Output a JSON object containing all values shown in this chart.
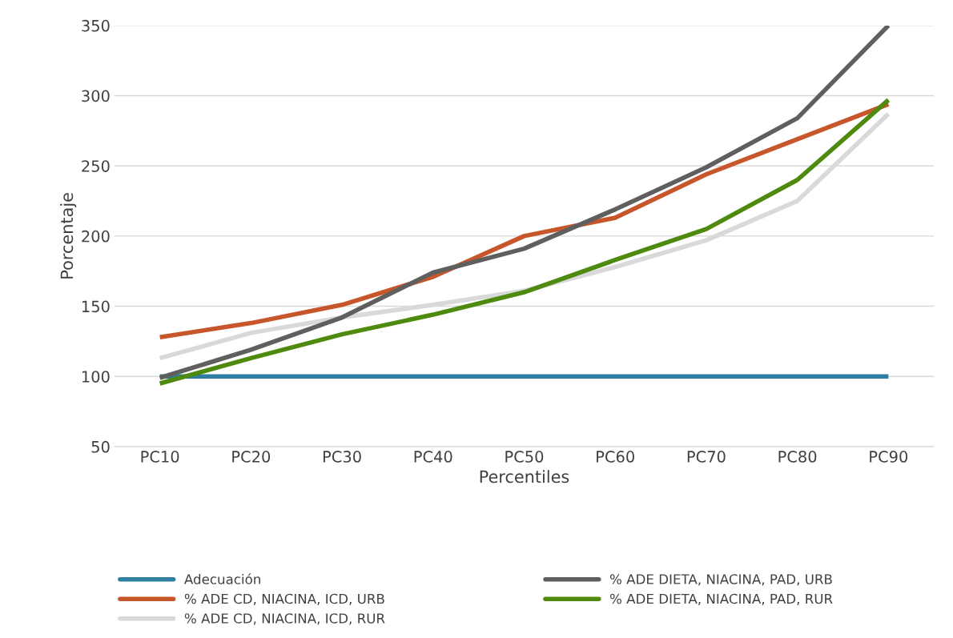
{
  "chart_data": {
    "type": "line",
    "xlabel": "Percentiles",
    "ylabel": "Porcentaje",
    "categories": [
      "PC10",
      "PC20",
      "PC30",
      "PC40",
      "PC50",
      "PC60",
      "PC70",
      "PC80",
      "PC90"
    ],
    "series": [
      {
        "name": "Adecuación",
        "color": "#2e7fa0",
        "values": [
          100,
          100,
          100,
          100,
          100,
          100,
          100,
          100,
          100
        ]
      },
      {
        "name": "% ADE CD, NIACINA, ICD, URB",
        "color": "#c8562b",
        "values": [
          128,
          138,
          151,
          171,
          200,
          213,
          244,
          269,
          294
        ]
      },
      {
        "name": "% ADE CD, NIACINA, ICD, RUR",
        "color": "#d9d9d9",
        "values": [
          113,
          131,
          142,
          151,
          161,
          178,
          197,
          225,
          287
        ]
      },
      {
        "name": "% ADE DIETA, NIACINA, PAD, URB",
        "color": "#5f5f5f",
        "values": [
          99,
          119,
          142,
          174,
          191,
          219,
          249,
          284,
          350
        ]
      },
      {
        "name": "% ADE DIETA, NIACINA, PAD, RUR",
        "color": "#4e8a0e",
        "values": [
          95,
          113,
          130,
          144,
          160,
          183,
          205,
          240,
          297
        ]
      }
    ],
    "ylim": [
      50,
      350
    ],
    "yticks": [
      50,
      100,
      150,
      200,
      250,
      300,
      350
    ],
    "grid": "y",
    "legend": "bottom",
    "marker": "none",
    "line_style": "solid"
  }
}
